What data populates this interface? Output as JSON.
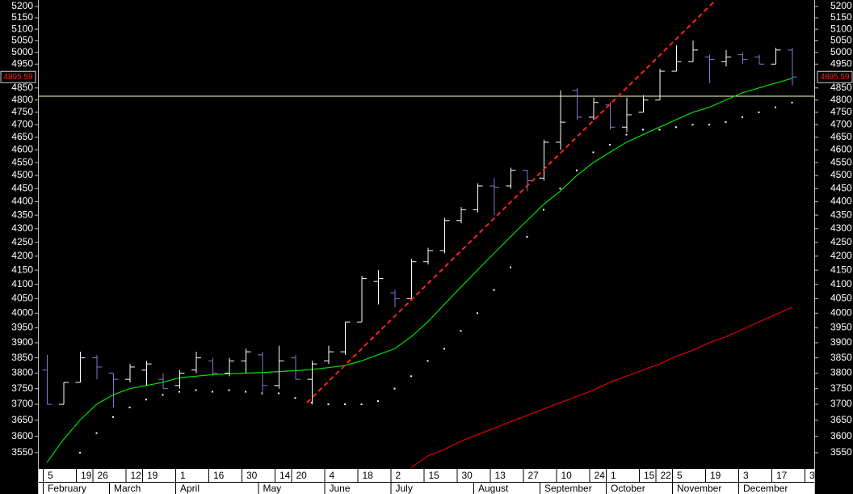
{
  "chart_data": {
    "type": "ohlc",
    "categories": [
      "5",
      null,
      "19",
      "26",
      null,
      "12",
      "19",
      null,
      "1",
      null,
      "16",
      null,
      "30",
      null,
      "14",
      "20",
      null,
      "4",
      null,
      "18",
      null,
      "2",
      null,
      "15",
      null,
      "30",
      null,
      "13",
      null,
      "27",
      null,
      "10",
      null,
      "24",
      "1",
      null,
      "15",
      "22",
      "5",
      null,
      "19",
      null,
      "3",
      null,
      "17",
      null,
      "3"
    ],
    "months": [
      "February",
      null,
      null,
      null,
      "March",
      null,
      null,
      null,
      "April",
      null,
      null,
      null,
      null,
      "May",
      null,
      null,
      null,
      "June",
      null,
      null,
      null,
      "July",
      null,
      null,
      null,
      null,
      "August",
      null,
      null,
      null,
      "September",
      null,
      null,
      null,
      "October",
      null,
      null,
      null,
      "November",
      null,
      null,
      null,
      "December",
      null,
      null,
      null,
      null
    ],
    "open": [
      3810,
      3700,
      3770,
      3850,
      3800,
      3780,
      3810,
      3780,
      3760,
      3810,
      3840,
      3800,
      3840,
      3860,
      3760,
      3850,
      3780,
      3840,
      3870,
      3970,
      4110,
      4070,
      4050,
      4180,
      4220,
      4330,
      4370,
      4460,
      4460,
      4520,
      4490,
      4630,
      4840,
      4730,
      4780,
      4690,
      4750,
      4800,
      4920,
      4960,
      4980,
      4960,
      4990,
      4980,
      4950,
      5010,
      null
    ],
    "high": [
      3860,
      3770,
      3870,
      3860,
      3800,
      3830,
      3840,
      3800,
      3810,
      3870,
      3850,
      3850,
      3880,
      3870,
      3890,
      3860,
      3840,
      3890,
      3970,
      4130,
      4150,
      4080,
      4190,
      4230,
      4340,
      4380,
      4470,
      4490,
      4530,
      4520,
      4640,
      4840,
      4850,
      4810,
      4790,
      4810,
      4820,
      4930,
      5030,
      5050,
      4990,
      5010,
      5000,
      4990,
      5020,
      5020,
      null
    ],
    "low": [
      3700,
      3700,
      3770,
      3780,
      3690,
      3770,
      3760,
      3750,
      3750,
      3800,
      3790,
      3790,
      3800,
      3730,
      3750,
      3780,
      3700,
      3830,
      3860,
      3970,
      4030,
      4020,
      4050,
      4170,
      4210,
      4320,
      4360,
      4350,
      4450,
      4440,
      4480,
      4600,
      4720,
      4720,
      4680,
      4670,
      4750,
      4800,
      4920,
      4960,
      4870,
      4940,
      4950,
      4950,
      4950,
      4860,
      null
    ],
    "close": [
      3700,
      3770,
      3850,
      3820,
      3780,
      3820,
      3830,
      3750,
      3800,
      3850,
      3800,
      3840,
      3870,
      3760,
      3840,
      3780,
      3830,
      3870,
      3970,
      4120,
      4120,
      4050,
      4180,
      4220,
      4330,
      4370,
      4460,
      4455,
      4520,
      4480,
      4630,
      4710,
      4730,
      4790,
      4690,
      4740,
      4800,
      4920,
      4960,
      5010,
      4970,
      4980,
      4970,
      4950,
      5010,
      4895.59,
      null
    ],
    "up_color": "#ffffff",
    "down_color": "#7b7bd0",
    "series": [
      {
        "color": "#00e000",
        "values": [
          3520,
          3590,
          3650,
          3700,
          3730,
          3750,
          3760,
          3770,
          3785,
          3790,
          3795,
          3798,
          3800,
          3802,
          3805,
          3808,
          3812,
          3818,
          3825,
          3840,
          3860,
          3880,
          3920,
          3970,
          4030,
          4090,
          4150,
          4210,
          4270,
          4330,
          4390,
          4440,
          4500,
          4550,
          4590,
          4630,
          4660,
          4690,
          4720,
          4750,
          4770,
          4800,
          4830,
          4850,
          4870,
          4890,
          null
        ]
      },
      {
        "color": "#e00000",
        "values": [
          null,
          null,
          null,
          null,
          null,
          null,
          null,
          null,
          null,
          null,
          null,
          null,
          null,
          null,
          null,
          null,
          null,
          null,
          null,
          null,
          null,
          null,
          3505,
          3540,
          3560,
          3585,
          3605,
          3625,
          3645,
          3665,
          3685,
          3705,
          3725,
          3745,
          3770,
          3790,
          3810,
          3830,
          3855,
          3875,
          3900,
          3920,
          3945,
          3970,
          3995,
          4020,
          null
        ]
      }
    ],
    "dots": {
      "color": "#ffffff",
      "values": [
        null,
        null,
        3550,
        3610,
        3660,
        3690,
        3715,
        3730,
        3740,
        3745,
        3740,
        3745,
        3740,
        3735,
        3735,
        3720,
        3705,
        3700,
        3700,
        3700,
        3710,
        3750,
        3790,
        3840,
        3880,
        3940,
        4000,
        4080,
        4160,
        4270,
        4370,
        4450,
        4520,
        4590,
        4620,
        4660,
        4680,
        4680,
        4690,
        4700,
        4700,
        4710,
        4730,
        4750,
        4770,
        4790,
        null
      ]
    },
    "trendline": {
      "color": "#ff2020",
      "x": [
        15.7,
        40.4
      ],
      "values": [
        3705,
        5229
      ]
    },
    "hline": {
      "color": "#ffffc0",
      "value": 4816
    },
    "last_price": 4895.59,
    "log_scale": true,
    "ylim": [
      3501,
      5229
    ],
    "yticks": [
      3550,
      3600,
      3650,
      3700,
      3750,
      3800,
      3850,
      3900,
      3950,
      4000,
      4050,
      4100,
      4150,
      4200,
      4250,
      4300,
      4350,
      4400,
      4450,
      4500,
      4550,
      4600,
      4650,
      4700,
      4750,
      4800,
      4850,
      4950,
      5000,
      5050,
      5100,
      5150,
      5200
    ]
  }
}
